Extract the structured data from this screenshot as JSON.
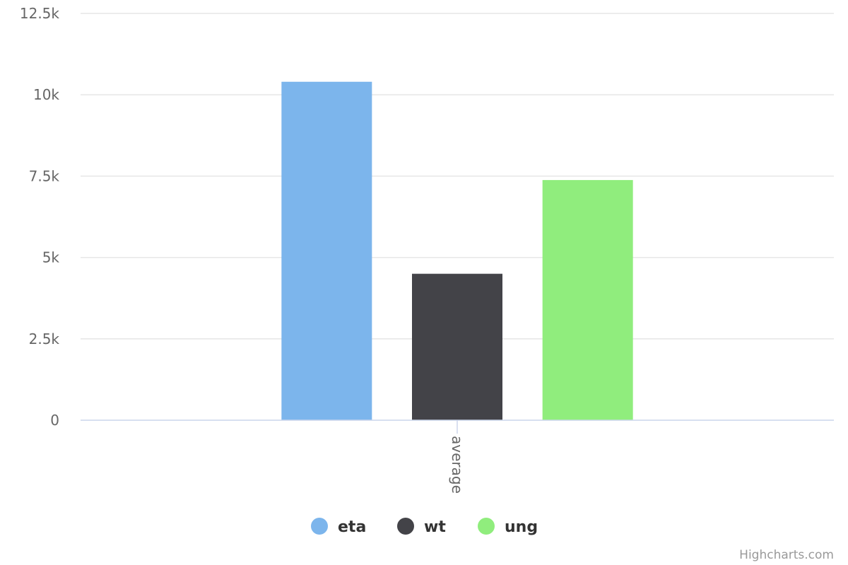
{
  "chart_data": {
    "type": "bar",
    "orientation": "vertical",
    "categories": [
      "average"
    ],
    "series": [
      {
        "name": "eta",
        "values": [
          10400
        ],
        "color": "#7cb5ec"
      },
      {
        "name": "wt",
        "values": [
          4500
        ],
        "color": "#434348"
      },
      {
        "name": "ung",
        "values": [
          7380
        ],
        "color": "#90ed7d"
      }
    ],
    "ylim": [
      0,
      12500
    ],
    "y_ticks": [
      0,
      2500,
      5000,
      7500,
      10000,
      12500
    ],
    "y_tick_labels": [
      "0",
      "2.5k",
      "5k",
      "7.5k",
      "10k",
      "12.5k"
    ],
    "title": "",
    "xlabel": "",
    "ylabel": "",
    "grid": true,
    "legend_position": "bottom-center"
  },
  "credits": "Highcharts.com"
}
